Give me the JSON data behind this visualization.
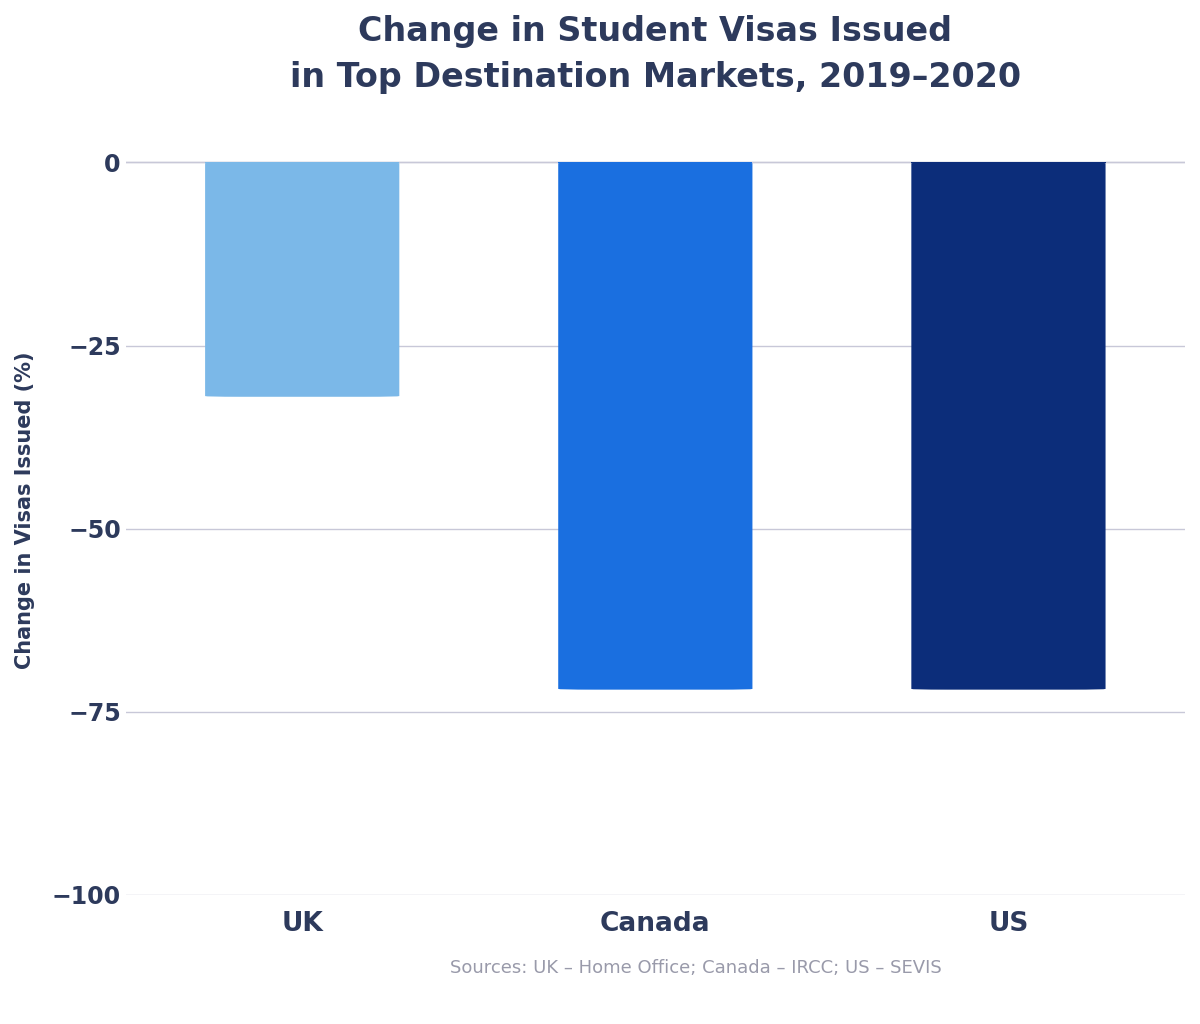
{
  "categories": [
    "UK",
    "Canada",
    "US"
  ],
  "values": [
    -32,
    -72,
    -72
  ],
  "bar_colors": [
    "#7BB8E8",
    "#1A6FE0",
    "#0C2D7A"
  ],
  "title_line1": "Change in Student Visas Issued",
  "title_line2": "in Top Destination Markets, 2019–2020",
  "ylabel": "Change in Visas Issued (%)",
  "ylim": [
    -100,
    5
  ],
  "yticks": [
    0,
    -25,
    -50,
    -75,
    -100
  ],
  "title_color": "#2D3A5C",
  "axis_label_color": "#2D3A5C",
  "tick_label_color": "#2D3A5C",
  "grid_color": "#C8C8D8",
  "source_text": "Sources: UK – Home Office; Canada – IRCC; US – SEVIS",
  "source_color": "#999AAA",
  "background_color": "#FFFFFF",
  "bar_width": 0.55,
  "title_fontsize": 24,
  "ylabel_fontsize": 15,
  "tick_fontsize": 17,
  "xtick_fontsize": 19,
  "source_fontsize": 13,
  "rounding_size": 2.5
}
